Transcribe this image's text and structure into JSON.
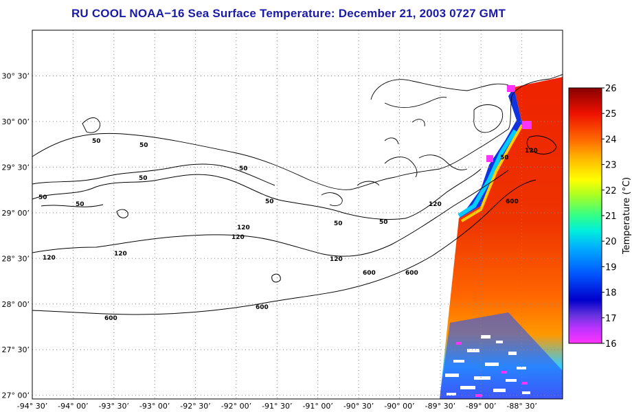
{
  "title": "RU COOL  NOAA−16  Sea Surface Temperature:  December 21, 2003 0727 GMT",
  "map": {
    "lon_range": [
      -94.5,
      -88.0
    ],
    "lat_range": [
      26.96,
      31.0
    ],
    "lat_ticks": [
      {
        "value": 30.5,
        "label": "30° 30’"
      },
      {
        "value": 30.0,
        "label": "30° 00’"
      },
      {
        "value": 29.5,
        "label": "29° 30’"
      },
      {
        "value": 29.0,
        "label": "29° 00’"
      },
      {
        "value": 28.5,
        "label": "28° 30’"
      },
      {
        "value": 28.0,
        "label": "28° 00’"
      },
      {
        "value": 27.5,
        "label": "27° 30’"
      },
      {
        "value": 27.0,
        "label": "27° 00’"
      }
    ],
    "lon_ticks": [
      {
        "value": -94.5,
        "label": "-94° 30’"
      },
      {
        "value": -94.0,
        "label": "-94° 00’"
      },
      {
        "value": -93.5,
        "label": "-93° 30’"
      },
      {
        "value": -93.0,
        "label": "-93° 00’"
      },
      {
        "value": -92.5,
        "label": "-92° 30’"
      },
      {
        "value": -92.0,
        "label": "-92° 00’"
      },
      {
        "value": -91.5,
        "label": "-91° 30’"
      },
      {
        "value": -91.0,
        "label": "-91° 00’"
      },
      {
        "value": -90.5,
        "label": "-90° 30’"
      },
      {
        "value": -90.0,
        "label": "-90° 00’"
      },
      {
        "value": -89.5,
        "label": "-89° 30’"
      },
      {
        "value": -89.0,
        "label": "-89° 00’"
      },
      {
        "value": -88.5,
        "label": "-88° 30’"
      }
    ],
    "isobath_labels": [
      "50",
      "50",
      "50",
      "50",
      "50",
      "50",
      "50",
      "50",
      "50",
      "50",
      "120",
      "120",
      "120",
      "120",
      "120",
      "120",
      "120",
      "600",
      "600",
      "600",
      "600",
      "600"
    ]
  },
  "colorbar": {
    "title": "Temperature (°C)",
    "min": 16,
    "max": 26,
    "tick_labels": [
      "26",
      "25",
      "24",
      "23",
      "22",
      "21",
      "20",
      "19",
      "18",
      "17",
      "16"
    ],
    "colors": [
      "#ff33ff",
      "#9933ff",
      "#0000cc",
      "#0055ff",
      "#00bbff",
      "#00ffcc",
      "#66ff33",
      "#ffff00",
      "#ffaa00",
      "#ff5500",
      "#dd0000",
      "#880000"
    ]
  }
}
